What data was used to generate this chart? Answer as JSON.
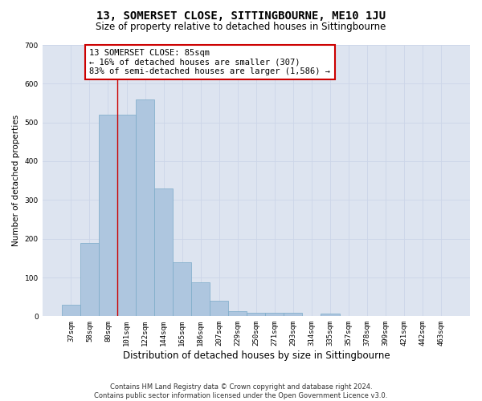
{
  "title": "13, SOMERSET CLOSE, SITTINGBOURNE, ME10 1JU",
  "subtitle": "Size of property relative to detached houses in Sittingbourne",
  "xlabel": "Distribution of detached houses by size in Sittingbourne",
  "ylabel": "Number of detached properties",
  "categories": [
    "37sqm",
    "58sqm",
    "80sqm",
    "101sqm",
    "122sqm",
    "144sqm",
    "165sqm",
    "186sqm",
    "207sqm",
    "229sqm",
    "250sqm",
    "271sqm",
    "293sqm",
    "314sqm",
    "335sqm",
    "357sqm",
    "378sqm",
    "399sqm",
    "421sqm",
    "442sqm",
    "463sqm"
  ],
  "values": [
    30,
    190,
    520,
    520,
    560,
    330,
    140,
    88,
    40,
    13,
    8,
    8,
    10,
    0,
    7,
    0,
    0,
    0,
    0,
    0,
    0
  ],
  "bar_color": "#aec6df",
  "bar_edge_color": "#7aaac8",
  "vline_x": 2.5,
  "vline_color": "#cc0000",
  "annotation_text": "13 SOMERSET CLOSE: 85sqm\n← 16% of detached houses are smaller (307)\n83% of semi-detached houses are larger (1,586) →",
  "annotation_box_color": "#ffffff",
  "annotation_box_edge": "#cc0000",
  "ylim": [
    0,
    700
  ],
  "yticks": [
    0,
    100,
    200,
    300,
    400,
    500,
    600,
    700
  ],
  "grid_color": "#ccd5e8",
  "bg_color": "#dde4f0",
  "footer": "Contains HM Land Registry data © Crown copyright and database right 2024.\nContains public sector information licensed under the Open Government Licence v3.0.",
  "title_fontsize": 10,
  "subtitle_fontsize": 8.5,
  "xlabel_fontsize": 8.5,
  "ylabel_fontsize": 7.5,
  "tick_fontsize": 6.5,
  "annot_fontsize": 7.5,
  "footer_fontsize": 6.0
}
